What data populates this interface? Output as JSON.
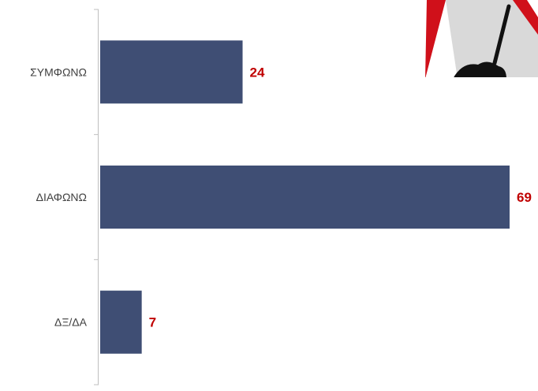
{
  "chart_data": {
    "type": "bar",
    "orientation": "horizontal",
    "categories": [
      "ΣΥΜΦΩΝΩ",
      "ΔΙΑΦΩΝΩ",
      "ΔΞ/ΔΑ"
    ],
    "values": [
      24,
      69,
      7
    ],
    "xlim": [
      0,
      69
    ],
    "grid": false,
    "legend": "none",
    "bar_color": "#3f4e74",
    "label_color": "#c00000",
    "axis_color": "#bfbfbf"
  },
  "decoration": {
    "icon": "roadworks-warning-sign-icon",
    "sign_red": "#d0101a",
    "sign_gray": "#d9d9d9",
    "sign_black": "#111111"
  }
}
